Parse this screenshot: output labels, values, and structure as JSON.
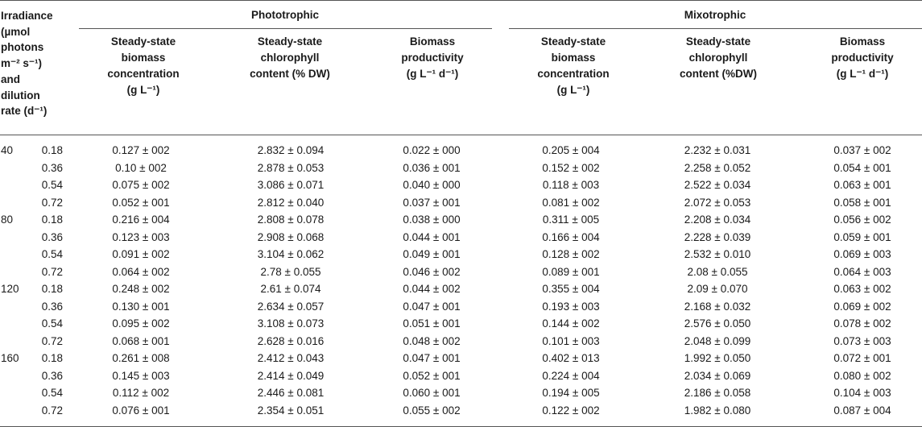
{
  "header": {
    "stub_lines": [
      "Irradiance",
      "(µmol",
      "photons",
      "m⁻² s⁻¹)",
      "and",
      "dilution",
      "rate (d⁻¹)"
    ],
    "group_phototrophic": "Phototrophic",
    "group_mixotrophic": "Mixotrophic",
    "col_biomass": [
      "Steady-state",
      "biomass",
      "concentration",
      "(g L⁻¹)"
    ],
    "col_chlorophyll_photo": [
      "Steady-state",
      "chlorophyll",
      "content (% DW)"
    ],
    "col_chlorophyll_mixo": [
      "Steady-state",
      "chlorophyll",
      "content (%DW)"
    ],
    "col_productivity": [
      "Biomass",
      "productivity",
      "(g L⁻¹ d⁻¹)"
    ]
  },
  "rows": [
    {
      "irr": "40",
      "dil": "0.18",
      "v": [
        "0.127 ± 002",
        "2.832 ± 0.094",
        "0.022 ± 000",
        "0.205 ± 004",
        "2.232 ± 0.031",
        "0.037 ± 002"
      ]
    },
    {
      "irr": "",
      "dil": "0.36",
      "v": [
        "0.10 ± 002",
        "2.878 ± 0.053",
        "0.036 ± 001",
        "0.152 ± 002",
        "2.258 ± 0.052",
        "0.054 ± 001"
      ]
    },
    {
      "irr": "",
      "dil": "0.54",
      "v": [
        "0.075 ± 002",
        "3.086 ± 0.071",
        "0.040 ± 000",
        "0.118 ± 003",
        "2.522 ± 0.034",
        "0.063 ± 001"
      ]
    },
    {
      "irr": "",
      "dil": "0.72",
      "v": [
        "0.052 ± 001",
        "2.812 ± 0.040",
        "0.037 ± 001",
        "0.081 ± 002",
        "2.072 ± 0.053",
        "0.058 ± 001"
      ]
    },
    {
      "irr": "80",
      "dil": "0.18",
      "v": [
        "0.216 ± 004",
        "2.808 ± 0.078",
        "0.038 ± 000",
        "0.311 ± 005",
        "2.208 ± 0.034",
        "0.056 ± 002"
      ]
    },
    {
      "irr": "",
      "dil": "0.36",
      "v": [
        "0.123 ± 003",
        "2.908 ± 0.068",
        "0.044 ± 001",
        "0.166 ± 004",
        "2.228 ± 0.039",
        "0.059 ± 001"
      ]
    },
    {
      "irr": "",
      "dil": "0.54",
      "v": [
        "0.091 ± 002",
        "3.104 ± 0.062",
        "0.049 ± 001",
        "0.128 ± 002",
        "2.532 ± 0.010",
        "0.069 ± 003"
      ]
    },
    {
      "irr": "",
      "dil": "0.72",
      "v": [
        "0.064 ± 002",
        "2.78 ± 0.055",
        "0.046 ± 002",
        "0.089 ± 001",
        "2.08 ± 0.055",
        "0.064 ± 003"
      ]
    },
    {
      "irr": "120",
      "dil": "0.18",
      "v": [
        "0.248 ± 002",
        "2.61 ± 0.074",
        "0.044 ± 002",
        "0.355 ± 004",
        "2.09 ± 0.070",
        "0.063 ± 002"
      ]
    },
    {
      "irr": "",
      "dil": "0.36",
      "v": [
        "0.130 ± 001",
        "2.634 ± 0.057",
        "0.047 ± 001",
        "0.193 ± 003",
        "2.168 ± 0.032",
        "0.069 ± 002"
      ]
    },
    {
      "irr": "",
      "dil": "0.54",
      "v": [
        "0.095 ± 002",
        "3.108 ± 0.073",
        "0.051 ± 001",
        "0.144 ± 002",
        "2.576 ± 0.050",
        "0.078 ± 002"
      ]
    },
    {
      "irr": "",
      "dil": "0.72",
      "v": [
        "0.068 ± 001",
        "2.628 ± 0.016",
        "0.048 ± 002",
        "0.101 ± 003",
        "2.048 ± 0.099",
        "0.073 ± 003"
      ]
    },
    {
      "irr": "160",
      "dil": "0.18",
      "v": [
        "0.261 ± 008",
        "2.412 ± 0.043",
        "0.047 ± 001",
        "0.402 ± 013",
        "1.992 ± 0.050",
        "0.072 ± 001"
      ]
    },
    {
      "irr": "",
      "dil": "0.36",
      "v": [
        "0.145 ± 003",
        "2.414 ± 0.049",
        "0.052 ± 001",
        "0.224 ± 004",
        "2.034 ± 0.069",
        "0.080 ± 002"
      ]
    },
    {
      "irr": "",
      "dil": "0.54",
      "v": [
        "0.112 ± 002",
        "2.446 ± 0.081",
        "0.060 ± 001",
        "0.194 ± 005",
        "2.186 ± 0.058",
        "0.104 ± 003"
      ]
    },
    {
      "irr": "",
      "dil": "0.72",
      "v": [
        "0.076 ± 001",
        "2.354 ± 0.051",
        "0.055 ± 002",
        "0.122 ± 002",
        "1.982 ± 0.080",
        "0.087 ± 004"
      ]
    }
  ]
}
